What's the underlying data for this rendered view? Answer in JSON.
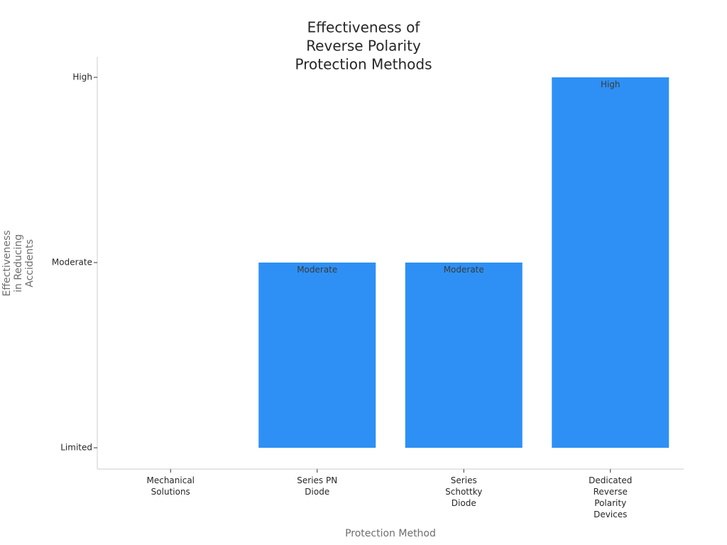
{
  "chart_data": {
    "type": "bar",
    "title": [
      "Effectiveness of",
      "Reverse Polarity",
      "Protection Methods"
    ],
    "xlabel": "Protection Method",
    "ylabel": [
      "Effectiveness",
      "in Reducing",
      "Accidents"
    ],
    "categories": [
      [
        "Mechanical",
        "Solutions"
      ],
      [
        "Series PN",
        "Diode"
      ],
      [
        "Series",
        "Schottky",
        "Diode"
      ],
      [
        "Dedicated",
        "Reverse",
        "Polarity",
        "Devices"
      ]
    ],
    "y_levels": [
      "Limited",
      "Moderate",
      "High"
    ],
    "values": [
      0,
      1,
      1,
      2
    ],
    "bar_labels": [
      "",
      "Moderate",
      "Moderate",
      "High"
    ],
    "ylim": [
      0,
      2
    ],
    "bar_color": "#2e90f5",
    "grid": false
  }
}
